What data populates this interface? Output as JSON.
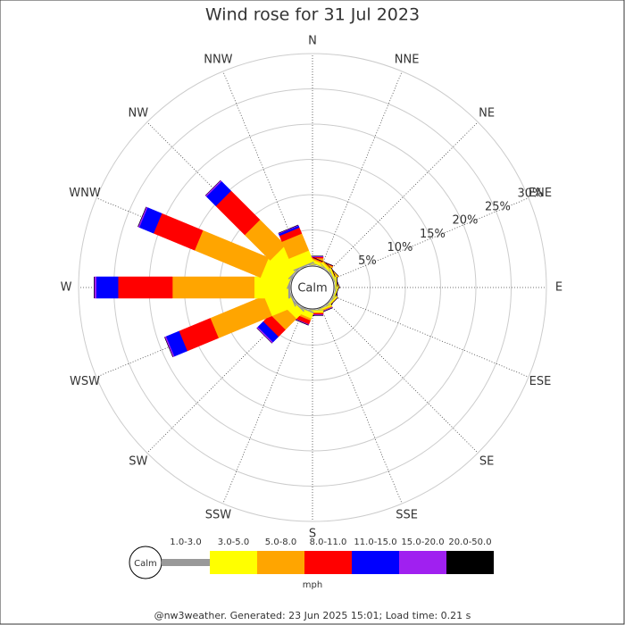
{
  "chart_data": {
    "type": "windrose",
    "title": "Wind rose for 31 Jul 2023",
    "categories": [
      "N",
      "NNE",
      "NE",
      "ENE",
      "E",
      "ESE",
      "SE",
      "SSE",
      "S",
      "SSW",
      "SW",
      "WSW",
      "W",
      "WNW",
      "NW",
      "NNW"
    ],
    "calm_label": "Calm",
    "rlim": [
      0,
      30
    ],
    "rticks": [
      {
        "value": 5,
        "label": "5%"
      },
      {
        "value": 10,
        "label": "10%"
      },
      {
        "value": 15,
        "label": "15%"
      },
      {
        "value": 20,
        "label": "20%"
      },
      {
        "value": 25,
        "label": "25%"
      },
      {
        "value": 30,
        "label": "30%"
      }
    ],
    "series": [
      {
        "name": "1.0-3.0",
        "color": "#999999",
        "values": [
          0.1,
          0.1,
          0.1,
          0.1,
          0.1,
          0.1,
          0.1,
          0.1,
          0.1,
          0.2,
          0.2,
          0.2,
          0.3,
          0.2,
          0.2,
          0.2
        ]
      },
      {
        "name": "3.0-5.0",
        "color": "#ffff00",
        "values": [
          0.5,
          0.4,
          0.3,
          0.2,
          0.2,
          0.2,
          0.2,
          0.2,
          0.3,
          0.8,
          1.4,
          3.5,
          4.8,
          4.0,
          3.6,
          1.7
        ]
      },
      {
        "name": "5.0-8.0",
        "color": "#ffa500",
        "values": [
          0.4,
          0.2,
          0.2,
          0.1,
          0,
          0,
          0.1,
          0.2,
          0.1,
          0.3,
          2.2,
          8.2,
          11.6,
          10.1,
          5.1,
          2.6
        ]
      },
      {
        "name": "8.0-11.0",
        "color": "#ff0000",
        "values": [
          0.2,
          0.1,
          0,
          0,
          0,
          0,
          0,
          0,
          0.2,
          0.6,
          1.4,
          4.8,
          7.7,
          6.3,
          5.8,
          0.9
        ]
      },
      {
        "name": "11.0-15.0",
        "color": "#0000ff",
        "values": [
          0,
          0,
          0,
          0,
          0,
          0,
          0,
          0,
          0,
          0,
          1.1,
          2.0,
          3.1,
          2.2,
          1.9,
          0.3
        ]
      },
      {
        "name": "15.0-20.0",
        "color": "#a020f0",
        "values": [
          0.1,
          0,
          0,
          0,
          0,
          0,
          0,
          0.1,
          0.1,
          0.1,
          0.2,
          0.2,
          0.3,
          0.2,
          0.2,
          0.1
        ]
      },
      {
        "name": "20.0-50.0",
        "color": "#000000",
        "values": [
          0,
          0,
          0,
          0,
          0,
          0,
          0,
          0,
          0,
          0,
          0,
          0,
          0,
          0,
          0,
          0
        ]
      }
    ],
    "unit": "mph",
    "footer": "@nw3weather. Generated: 23 Jun 2025 15:01; Load time: 0.21 s"
  }
}
